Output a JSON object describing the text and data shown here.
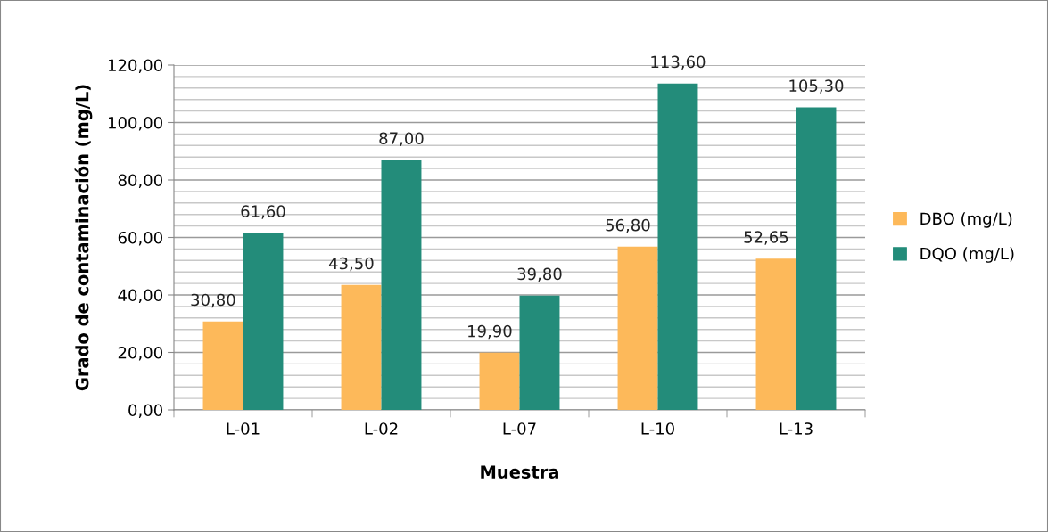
{
  "chart_data": {
    "type": "bar",
    "xlabel": "Muestra",
    "ylabel": "Grado de contaminación (mg/L)",
    "categories": [
      "L-01",
      "L-02",
      "L-07",
      "L-10",
      "L-13"
    ],
    "series": [
      {
        "name": "DBO (mg/L)",
        "color": "#fdb95a",
        "values": [
          30.8,
          43.5,
          19.9,
          56.8,
          52.65
        ],
        "value_labels": [
          "30,80",
          "43,50",
          "19,90",
          "56,80",
          "52,65"
        ]
      },
      {
        "name": "DQO (mg/L)",
        "color": "#238c7a",
        "values": [
          61.6,
          87.0,
          39.8,
          113.6,
          105.3
        ],
        "value_labels": [
          "61,60",
          "87,00",
          "39,80",
          "113,60",
          "105,30"
        ]
      }
    ],
    "ylim": [
      0,
      120
    ],
    "yticks": [
      {
        "value": 0,
        "label": "0,00"
      },
      {
        "value": 20,
        "label": "20,00"
      },
      {
        "value": 40,
        "label": "40,00"
      },
      {
        "value": 60,
        "label": "60,00"
      },
      {
        "value": 80,
        "label": "80,00"
      },
      {
        "value": 100,
        "label": "100,00"
      },
      {
        "value": 120,
        "label": "120,00"
      }
    ],
    "grid": "y",
    "legend": "right"
  }
}
